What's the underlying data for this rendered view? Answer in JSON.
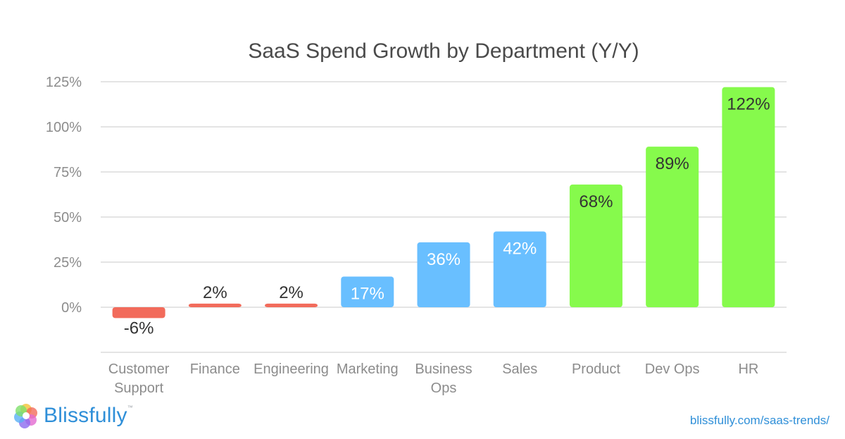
{
  "chart_data": {
    "type": "bar",
    "title": "SaaS Spend Growth by Department (Y/Y)",
    "xlabel": "",
    "ylabel": "",
    "ylim": [
      -25,
      125
    ],
    "yticks": [
      "0%",
      "25%",
      "50%",
      "75%",
      "100%",
      "125%"
    ],
    "ytick_values": [
      0,
      25,
      50,
      75,
      100,
      125
    ],
    "grid": true,
    "categories": [
      [
        "Customer",
        "Support"
      ],
      [
        "Finance"
      ],
      [
        "Engineering"
      ],
      [
        "Marketing"
      ],
      [
        "Business",
        "Ops"
      ],
      [
        "Sales"
      ],
      [
        "Product"
      ],
      [
        "Dev Ops"
      ],
      [
        "HR"
      ]
    ],
    "values": [
      -6,
      2,
      2,
      17,
      36,
      42,
      68,
      89,
      122
    ],
    "data_labels": [
      "-6%",
      "2%",
      "2%",
      "17%",
      "36%",
      "42%",
      "68%",
      "89%",
      "122%"
    ],
    "bar_colors": [
      "#f26b5b",
      "#f26b5b",
      "#f26b5b",
      "#69bfff",
      "#69bfff",
      "#69bfff",
      "#86fa4c",
      "#86fa4c",
      "#86fa4c"
    ],
    "label_colors": [
      "#333333",
      "#333333",
      "#333333",
      "#ffffff",
      "#ffffff",
      "#ffffff",
      "#333333",
      "#333333",
      "#333333"
    ]
  },
  "brand": {
    "name": "Blissfully",
    "trademark": "™",
    "url": "blissfully.com/saas-trends/",
    "color": "#2f8fd8"
  }
}
